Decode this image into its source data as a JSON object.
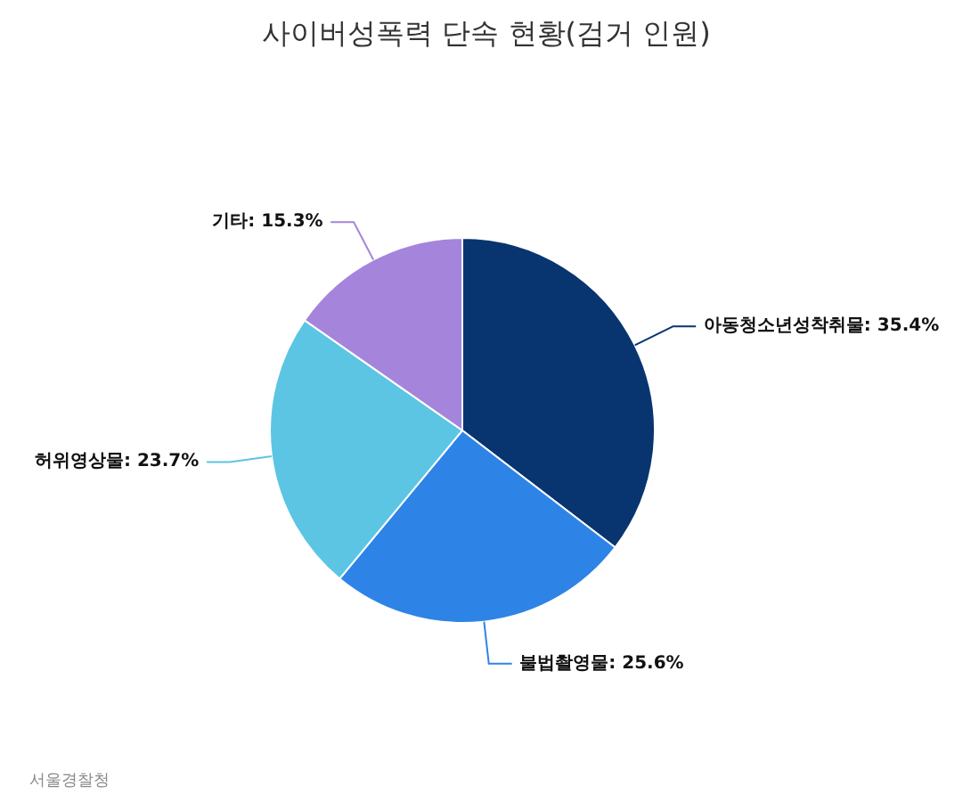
{
  "chart_data": {
    "type": "pie",
    "title": "사이버성폭력 단속 현황(검거 인원)",
    "categories": [
      "아동청소년성착취물",
      "불법촬영물",
      "허위영상물",
      "기타"
    ],
    "values": [
      35.4,
      25.6,
      23.7,
      15.3
    ],
    "colors": [
      "#08356f",
      "#2e84e6",
      "#5cc5e3",
      "#a584dc"
    ],
    "value_labels": [
      "35.4%",
      "25.6%",
      "23.7%",
      "15.3%"
    ],
    "annotations": [
      "서울경찰청"
    ]
  }
}
